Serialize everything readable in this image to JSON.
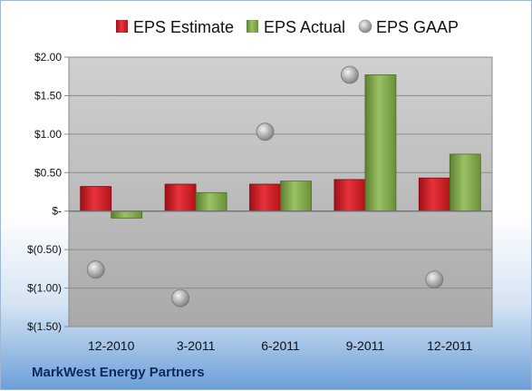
{
  "company": "MarkWest Energy Partners",
  "chart_data": {
    "type": "bar",
    "categories": [
      "12-2010",
      "3-2011",
      "6-2011",
      "9-2011",
      "12-2011"
    ],
    "series": [
      {
        "name": "EPS Estimate",
        "kind": "bar",
        "color": "#d21f26",
        "values": [
          0.32,
          0.35,
          0.35,
          0.41,
          0.43
        ]
      },
      {
        "name": "EPS Actual",
        "kind": "bar",
        "color": "#7fa54a",
        "values": [
          -0.09,
          0.24,
          0.39,
          1.77,
          0.74
        ]
      },
      {
        "name": "EPS GAAP",
        "kind": "marker",
        "color": "#a8a8a8",
        "values": [
          -0.76,
          -1.13,
          1.03,
          1.77,
          -0.89
        ]
      }
    ],
    "ylim": [
      -1.5,
      2.0
    ],
    "yticks": [
      2.0,
      1.5,
      1.0,
      0.5,
      0.0,
      -0.5,
      -1.0,
      -1.5
    ],
    "ytick_labels": [
      "$2.00",
      "$1.50",
      "$1.00",
      "$0.50",
      "$-",
      "$(0.50)",
      "$(1.00)",
      "$(1.50)"
    ],
    "grid": true,
    "legend_position": "top"
  }
}
